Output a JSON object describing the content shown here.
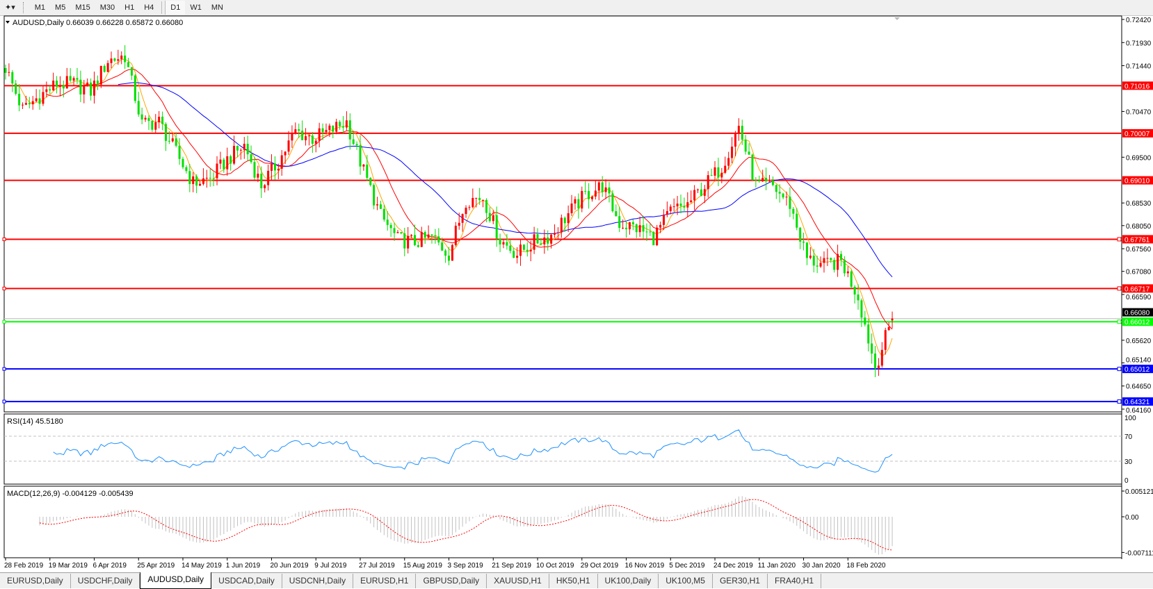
{
  "toolbar": {
    "tool_icon": "line-tools-icon",
    "timeframes": [
      "M1",
      "M5",
      "M15",
      "M30",
      "H1",
      "H4",
      "D1",
      "W1",
      "MN"
    ],
    "active_timeframe": "D1"
  },
  "chart": {
    "legend": "AUDUSD,Daily  0.66039 0.66228 0.65872 0.66080",
    "rsi_label": "RSI(14) 45.5180",
    "macd_label": "MACD(12,26,9) -0.004129 -0.005439",
    "current_price": "0.66080",
    "colors": {
      "bull": "#ff0000",
      "bear": "#00e000",
      "ma_fast": "#ffa500",
      "ma_mid": "#ff0000",
      "ma_slow": "#0000ff",
      "rsi": "#1e90ff",
      "macd_signal": "#ff0000",
      "macd_hist": "#c0c0c0"
    }
  },
  "chart_data": {
    "type": "candlestick",
    "symbol": "AUDUSD",
    "timeframe": "Daily",
    "ylim": [
      0.6416,
      0.7242
    ],
    "price_ticks": [
      "0.72420",
      "0.71930",
      "0.71440",
      "0.70470",
      "0.69500",
      "0.68530",
      "0.68050",
      "0.67560",
      "0.67080",
      "0.66590",
      "0.65620",
      "0.65140",
      "0.64650",
      "0.64160"
    ],
    "date_ticks": [
      "28 Feb 2019",
      "19 Mar 2019",
      "6 Apr 2019",
      "25 Apr 2019",
      "14 May 2019",
      "1 Jun 2019",
      "20 Jun 2019",
      "9 Jul 2019",
      "27 Jul 2019",
      "15 Aug 2019",
      "3 Sep 2019",
      "21 Sep 2019",
      "10 Oct 2019",
      "29 Oct 2019",
      "16 Nov 2019",
      "5 Dec 2019",
      "24 Dec 2019",
      "11 Jan 2020",
      "30 Jan 2020",
      "18 Feb 2020"
    ],
    "weekly_closes": [
      0.714,
      0.705,
      0.708,
      0.7105,
      0.7105,
      0.709,
      0.7155,
      0.7165,
      0.702,
      0.7025,
      0.696,
      0.6895,
      0.6905,
      0.6945,
      0.6975,
      0.689,
      0.694,
      0.7005,
      0.699,
      0.7005,
      0.7025,
      0.692,
      0.6825,
      0.6775,
      0.677,
      0.678,
      0.6745,
      0.686,
      0.6865,
      0.6775,
      0.6745,
      0.677,
      0.6785,
      0.683,
      0.687,
      0.689,
      0.681,
      0.68,
      0.678,
      0.6835,
      0.685,
      0.689,
      0.693,
      0.7015,
      0.689,
      0.6888,
      0.685,
      0.6735,
      0.672,
      0.673,
      0.6655,
      0.6505,
      0.6608
    ],
    "last_bar": {
      "open": 0.66039,
      "high": 0.66228,
      "low": 0.65872,
      "close": 0.6608
    },
    "levels": [
      {
        "price": "0.71016",
        "color": "#ff0000"
      },
      {
        "price": "0.70007",
        "color": "#ff0000"
      },
      {
        "price": "0.69010",
        "color": "#ff0000"
      },
      {
        "price": "0.67761",
        "color": "#ff0000"
      },
      {
        "price": "0.66717",
        "color": "#ff0000"
      },
      {
        "price": "0.66012",
        "color": "#00ff00"
      },
      {
        "price": "0.65012",
        "color": "#0000ff"
      },
      {
        "price": "0.64321",
        "color": "#0000ff"
      }
    ],
    "rsi": {
      "period": 14,
      "value": 45.518,
      "levels": [
        70,
        30
      ],
      "ticks": [
        "100",
        "70",
        "30",
        "0"
      ]
    },
    "macd": {
      "params": "12,26,9",
      "main": -0.004129,
      "signal": -0.005439,
      "ticks": [
        "0.005121",
        "0.00",
        "-0.007111"
      ]
    }
  },
  "tabs": [
    "EURUSD,Daily",
    "USDCHF,Daily",
    "AUDUSD,Daily",
    "USDCAD,Daily",
    "USDCNH,Daily",
    "EURUSD,H1",
    "GBPUSD,Daily",
    "XAUUSD,H1",
    "HK50,H1",
    "UK100,Daily",
    "UK100,M5",
    "GER30,H1",
    "FRA40,H1"
  ],
  "active_tab": "AUDUSD,Daily"
}
